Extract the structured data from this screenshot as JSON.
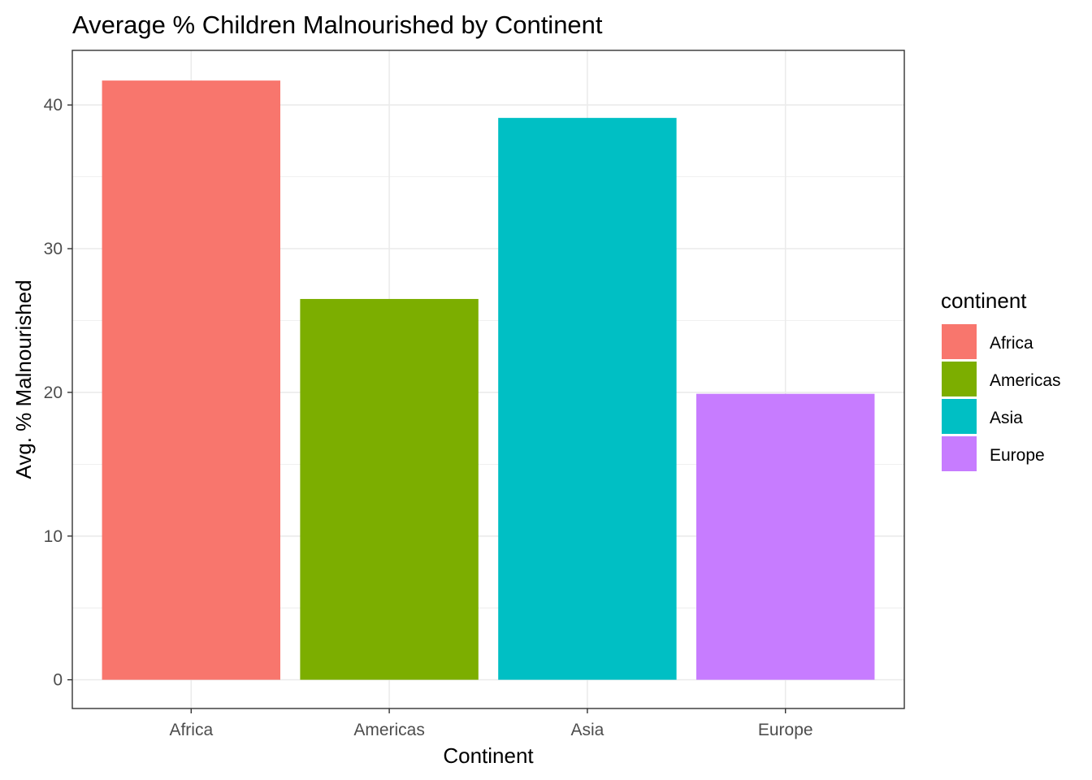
{
  "chart_data": {
    "type": "bar",
    "title": "Average % Children Malnourished by Continent",
    "xlabel": "Continent",
    "ylabel": "Avg. % Malnourished",
    "categories": [
      "Africa",
      "Americas",
      "Asia",
      "Europe"
    ],
    "values": [
      41.7,
      26.5,
      39.1,
      19.9
    ],
    "colors": [
      "#F8766D",
      "#7CAE00",
      "#00BFC4",
      "#C77CFF"
    ],
    "yticks": [
      0,
      10,
      20,
      30,
      40
    ],
    "ylim": [
      -2.0,
      43.8
    ],
    "grid": true,
    "legend": {
      "title": "continent",
      "position": "right",
      "entries": [
        "Africa",
        "Americas",
        "Asia",
        "Europe"
      ]
    }
  }
}
